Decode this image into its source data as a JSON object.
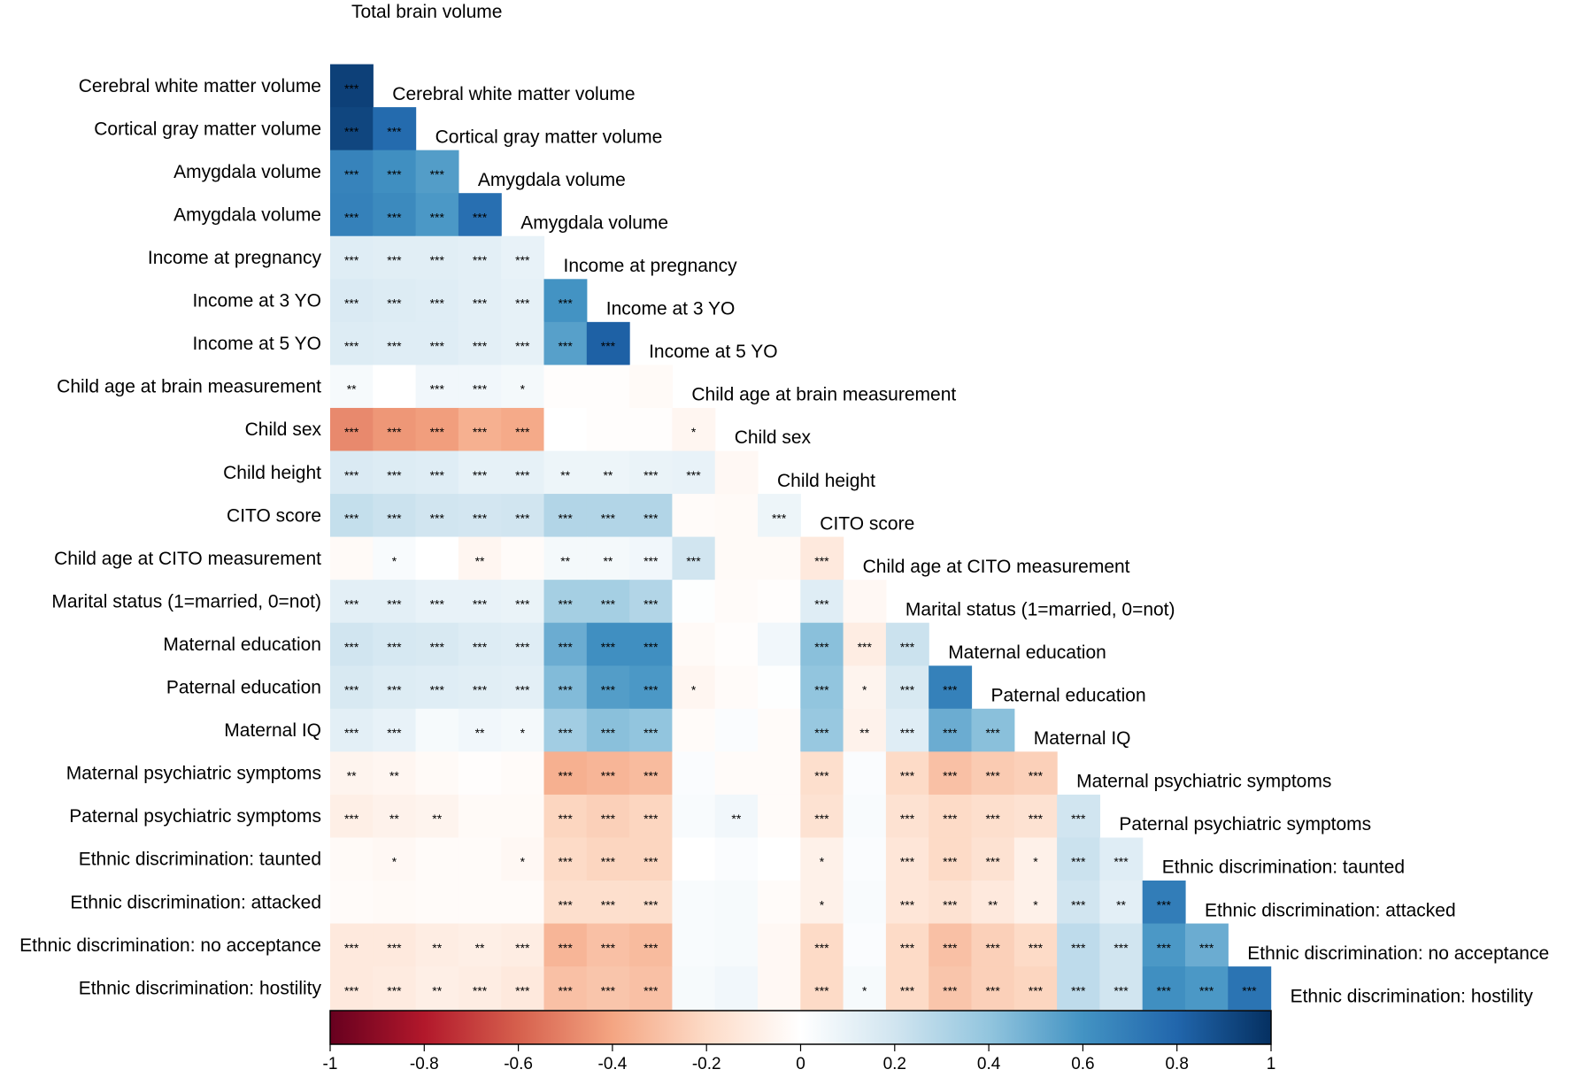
{
  "chart_data": {
    "type": "heatmap",
    "title": "",
    "variables": [
      "Total brain volume",
      "Cerebral white matter volume",
      "Cortical gray matter volume",
      "Amygdala volume",
      "Amygdala volume",
      "Income at pregnancy",
      "Income at 3 YO",
      "Income at 5 YO",
      "Child age at brain measurement",
      "Child sex",
      "Child height",
      "CITO score",
      "Child age at CITO measurement",
      "Marital status (1=married, 0=not)",
      "Maternal education",
      "Paternal education",
      "Maternal IQ",
      "Maternal psychiatric symptoms",
      "Paternal psychiatric symptoms",
      "Ethnic discrimination: taunted",
      "Ethnic discrimination: attacked",
      "Ethnic discrimination: no acceptance",
      "Ethnic discrimination: hostility"
    ],
    "colorbar": {
      "range": [
        -1,
        1
      ],
      "ticks": [
        "-1",
        "-0.8",
        "-0.6",
        "-0.4",
        "-0.2",
        "0",
        "0.2",
        "0.4",
        "0.6",
        "0.8",
        "1"
      ],
      "low_color": "#67001f",
      "mid_color": "#f7f7f7",
      "high_color": "#053061"
    },
    "rows": [
      {
        "values": [
          0.94
        ],
        "sig": [
          "***"
        ]
      },
      {
        "values": [
          0.92,
          0.78
        ],
        "sig": [
          "***",
          "***"
        ]
      },
      {
        "values": [
          0.67,
          0.62,
          0.56
        ],
        "sig": [
          "***",
          "***",
          "***"
        ]
      },
      {
        "values": [
          0.68,
          0.64,
          0.58,
          0.76
        ],
        "sig": [
          "***",
          "***",
          "***",
          "***"
        ]
      },
      {
        "values": [
          0.14,
          0.13,
          0.13,
          0.12,
          0.1
        ],
        "sig": [
          "***",
          "***",
          "***",
          "***",
          "***"
        ]
      },
      {
        "values": [
          0.16,
          0.15,
          0.14,
          0.12,
          0.11,
          0.6
        ],
        "sig": [
          "***",
          "***",
          "***",
          "***",
          "***",
          "***"
        ]
      },
      {
        "values": [
          0.15,
          0.14,
          0.14,
          0.12,
          0.11,
          0.55,
          0.82
        ],
        "sig": [
          "***",
          "***",
          "***",
          "***",
          "***",
          "***",
          "***"
        ]
      },
      {
        "values": [
          0.04,
          0.0,
          0.06,
          0.06,
          0.05,
          -0.01,
          -0.01,
          -0.03
        ],
        "sig": [
          "**",
          "",
          "***",
          "***",
          "*",
          "",
          "",
          ""
        ]
      },
      {
        "values": [
          -0.48,
          -0.44,
          -0.42,
          -0.36,
          -0.38,
          0.0,
          -0.01,
          -0.01,
          -0.05
        ],
        "sig": [
          "***",
          "***",
          "***",
          "***",
          "***",
          "",
          "",
          "",
          "*"
        ]
      },
      {
        "values": [
          0.16,
          0.15,
          0.14,
          0.11,
          0.11,
          0.08,
          0.08,
          0.09,
          0.1,
          -0.04
        ],
        "sig": [
          "***",
          "***",
          "***",
          "***",
          "***",
          "**",
          "**",
          "***",
          "***",
          ""
        ]
      },
      {
        "values": [
          0.24,
          0.22,
          0.2,
          0.19,
          0.2,
          0.3,
          0.3,
          0.3,
          -0.02,
          -0.03,
          0.08
        ],
        "sig": [
          "***",
          "***",
          "***",
          "***",
          "***",
          "***",
          "***",
          "***",
          "",
          "",
          "***"
        ]
      },
      {
        "values": [
          -0.03,
          0.03,
          0.0,
          -0.05,
          -0.02,
          0.05,
          0.05,
          0.06,
          0.2,
          -0.03,
          -0.03,
          -0.12
        ],
        "sig": [
          "",
          "*",
          "",
          "**",
          "",
          "**",
          "**",
          "***",
          "***",
          "",
          "",
          "***"
        ]
      },
      {
        "values": [
          0.12,
          0.12,
          0.1,
          0.1,
          0.09,
          0.34,
          0.34,
          0.3,
          0.01,
          -0.02,
          -0.01,
          0.14,
          -0.04
        ],
        "sig": [
          "***",
          "***",
          "***",
          "***",
          "***",
          "***",
          "***",
          "***",
          "",
          "",
          "",
          "***",
          ""
        ]
      },
      {
        "values": [
          0.2,
          0.18,
          0.17,
          0.15,
          0.14,
          0.5,
          0.62,
          0.62,
          -0.03,
          -0.01,
          0.06,
          0.42,
          -0.1,
          0.22
        ],
        "sig": [
          "***",
          "***",
          "***",
          "***",
          "***",
          "***",
          "***",
          "***",
          "",
          "",
          "",
          "***",
          "***",
          "***"
        ]
      },
      {
        "values": [
          0.17,
          0.15,
          0.14,
          0.13,
          0.12,
          0.44,
          0.56,
          0.58,
          -0.05,
          -0.02,
          0.01,
          0.4,
          -0.06,
          0.17,
          0.68
        ],
        "sig": [
          "***",
          "***",
          "***",
          "***",
          "***",
          "***",
          "***",
          "***",
          "*",
          "",
          "",
          "***",
          "*",
          "***",
          "***"
        ]
      },
      {
        "values": [
          0.12,
          0.1,
          0.04,
          0.06,
          0.05,
          0.35,
          0.42,
          0.4,
          -0.02,
          0.02,
          -0.02,
          0.38,
          -0.07,
          0.14,
          0.5,
          0.42
        ],
        "sig": [
          "***",
          "***",
          "",
          "**",
          "*",
          "***",
          "***",
          "***",
          "",
          "",
          "",
          "***",
          "**",
          "***",
          "***",
          "***"
        ]
      },
      {
        "values": [
          -0.06,
          -0.05,
          -0.03,
          -0.01,
          -0.02,
          -0.36,
          -0.34,
          -0.32,
          0.02,
          -0.02,
          -0.02,
          -0.18,
          0.02,
          -0.2,
          -0.3,
          -0.26,
          -0.24
        ],
        "sig": [
          "**",
          "**",
          "",
          "",
          "",
          "***",
          "***",
          "***",
          "",
          "",
          "",
          "***",
          "",
          "***",
          "***",
          "***",
          "***"
        ]
      },
      {
        "values": [
          -0.09,
          -0.07,
          -0.06,
          -0.03,
          -0.03,
          -0.22,
          -0.24,
          -0.22,
          0.03,
          0.06,
          -0.02,
          -0.16,
          0.03,
          -0.16,
          -0.2,
          -0.18,
          -0.16,
          0.2
        ],
        "sig": [
          "***",
          "**",
          "**",
          "",
          "",
          "***",
          "***",
          "***",
          "",
          "**",
          "",
          "***",
          "",
          "***",
          "***",
          "***",
          "***",
          "***"
        ]
      },
      {
        "values": [
          -0.03,
          -0.04,
          -0.02,
          -0.02,
          -0.04,
          -0.2,
          -0.22,
          -0.22,
          0.0,
          0.02,
          0.0,
          -0.08,
          0.02,
          -0.14,
          -0.2,
          -0.16,
          -0.08,
          0.22,
          0.14
        ],
        "sig": [
          "",
          "*",
          "",
          "",
          "*",
          "***",
          "***",
          "***",
          "",
          "",
          "",
          "*",
          "",
          "***",
          "***",
          "***",
          "*",
          "***",
          "***"
        ]
      },
      {
        "values": [
          -0.02,
          -0.03,
          -0.02,
          -0.02,
          -0.02,
          -0.18,
          -0.18,
          -0.18,
          0.03,
          0.04,
          -0.02,
          -0.08,
          0.03,
          -0.14,
          -0.16,
          -0.12,
          -0.08,
          0.2,
          0.12,
          0.7
        ],
        "sig": [
          "",
          "",
          "",
          "",
          "",
          "***",
          "***",
          "***",
          "",
          "",
          "",
          "*",
          "",
          "***",
          "***",
          "**",
          "*",
          "***",
          "**",
          "***"
        ]
      },
      {
        "values": [
          -0.12,
          -0.12,
          -0.1,
          -0.09,
          -0.1,
          -0.34,
          -0.3,
          -0.32,
          0.03,
          0.04,
          -0.04,
          -0.2,
          0.02,
          -0.2,
          -0.3,
          -0.24,
          -0.2,
          0.26,
          0.2,
          0.58,
          0.5
        ],
        "sig": [
          "***",
          "***",
          "**",
          "**",
          "***",
          "***",
          "***",
          "***",
          "",
          "",
          "",
          "***",
          "",
          "***",
          "***",
          "***",
          "***",
          "***",
          "***",
          "***",
          "***"
        ]
      },
      {
        "values": [
          -0.12,
          -0.11,
          -0.09,
          -0.1,
          -0.12,
          -0.3,
          -0.28,
          -0.3,
          0.04,
          0.06,
          -0.04,
          -0.2,
          0.04,
          -0.2,
          -0.28,
          -0.24,
          -0.22,
          0.26,
          0.2,
          0.62,
          0.58,
          0.74
        ],
        "sig": [
          "***",
          "***",
          "**",
          "***",
          "***",
          "***",
          "***",
          "***",
          "",
          "",
          "",
          "***",
          "*",
          "***",
          "***",
          "***",
          "***",
          "***",
          "***",
          "***",
          "***",
          "***"
        ]
      }
    ]
  }
}
